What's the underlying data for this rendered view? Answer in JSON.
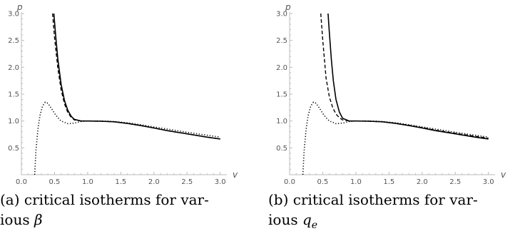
{
  "figures": [
    {
      "caption_label": "(a)",
      "caption_text": "critical isotherms for var-",
      "caption_text2": "ious",
      "caption_symbol": "β",
      "caption_subscript": ""
    },
    {
      "caption_label": "(b)",
      "caption_text": "critical isotherms for var-",
      "caption_text2": "ious",
      "caption_symbol": "q",
      "caption_subscript": "e"
    }
  ],
  "chart_data": [
    {
      "type": "line",
      "title": "",
      "xlabel": "v",
      "ylabel": "p",
      "xlim": [
        0.0,
        3.1
      ],
      "ylim": [
        0.0,
        3.0
      ],
      "x_ticks": [
        "0.0",
        "0.5",
        "1.0",
        "1.5",
        "2.0",
        "2.5",
        "3.0"
      ],
      "y_ticks": [
        "0.5",
        "1.0",
        "1.5",
        "2.0",
        "2.5",
        "3.0"
      ],
      "series": [
        {
          "style": "solid",
          "x": [
            0.49,
            0.52,
            0.55,
            0.6,
            0.65,
            0.7,
            0.75,
            0.8,
            0.9,
            1.0,
            1.2,
            1.4,
            1.6,
            1.8,
            2.0,
            2.2,
            2.5,
            2.8,
            3.0
          ],
          "y": [
            3.0,
            2.55,
            2.15,
            1.68,
            1.38,
            1.2,
            1.09,
            1.03,
            1.0,
            1.0,
            0.995,
            0.985,
            0.955,
            0.915,
            0.87,
            0.82,
            0.76,
            0.7,
            0.665
          ]
        },
        {
          "style": "dashed",
          "x": [
            0.47,
            0.5,
            0.55,
            0.6,
            0.65,
            0.7,
            0.75,
            0.8,
            0.9,
            1.0,
            1.2,
            1.4,
            1.6,
            1.8,
            2.0,
            2.2,
            2.5,
            2.8,
            3.0
          ],
          "y": [
            3.0,
            2.55,
            1.98,
            1.58,
            1.32,
            1.16,
            1.07,
            1.02,
            1.0,
            1.0,
            0.995,
            0.985,
            0.955,
            0.915,
            0.87,
            0.82,
            0.76,
            0.7,
            0.665
          ]
        },
        {
          "style": "dotted",
          "x": [
            0.2,
            0.22,
            0.25,
            0.28,
            0.32,
            0.36,
            0.4,
            0.45,
            0.5,
            0.55,
            0.6,
            0.7,
            0.8,
            0.9,
            1.0,
            1.2,
            1.4,
            1.6,
            1.8,
            2.0,
            2.2,
            2.5,
            2.8,
            3.0
          ],
          "y": [
            0.0,
            0.45,
            0.85,
            1.1,
            1.28,
            1.35,
            1.33,
            1.24,
            1.14,
            1.06,
            1.0,
            0.95,
            0.96,
            0.99,
            1.0,
            1.0,
            0.99,
            0.965,
            0.93,
            0.89,
            0.85,
            0.79,
            0.735,
            0.7
          ]
        }
      ]
    },
    {
      "type": "line",
      "title": "",
      "xlabel": "v",
      "ylabel": "p",
      "xlim": [
        0.0,
        3.1
      ],
      "ylim": [
        0.0,
        3.0
      ],
      "x_ticks": [
        "0.0",
        "0.5",
        "1.0",
        "1.5",
        "2.0",
        "2.5",
        "3.0"
      ],
      "y_ticks": [
        "0.5",
        "1.0",
        "1.5",
        "2.0",
        "2.5",
        "3.0"
      ],
      "series": [
        {
          "style": "solid",
          "x": [
            0.58,
            0.6,
            0.63,
            0.66,
            0.7,
            0.75,
            0.8,
            0.9,
            1.0,
            1.2,
            1.4,
            1.6,
            1.8,
            2.0,
            2.2,
            2.5,
            2.8,
            3.0
          ],
          "y": [
            3.0,
            2.65,
            2.15,
            1.75,
            1.4,
            1.17,
            1.05,
            1.0,
            1.0,
            0.995,
            0.985,
            0.955,
            0.915,
            0.87,
            0.82,
            0.76,
            0.7,
            0.665
          ]
        },
        {
          "style": "dashed",
          "x": [
            0.47,
            0.5,
            0.55,
            0.6,
            0.65,
            0.7,
            0.75,
            0.8,
            0.9,
            1.0,
            1.2,
            1.4,
            1.6,
            1.8,
            2.0,
            2.2,
            2.5,
            2.8,
            3.0
          ],
          "y": [
            3.0,
            2.5,
            1.8,
            1.45,
            1.25,
            1.13,
            1.06,
            1.02,
            1.0,
            1.0,
            0.995,
            0.985,
            0.958,
            0.92,
            0.877,
            0.83,
            0.77,
            0.715,
            0.68
          ]
        },
        {
          "style": "dotted",
          "x": [
            0.2,
            0.22,
            0.25,
            0.28,
            0.32,
            0.36,
            0.4,
            0.45,
            0.5,
            0.55,
            0.6,
            0.7,
            0.8,
            0.9,
            1.0,
            1.2,
            1.4,
            1.6,
            1.8,
            2.0,
            2.2,
            2.5,
            2.8,
            3.0
          ],
          "y": [
            0.0,
            0.45,
            0.85,
            1.1,
            1.28,
            1.35,
            1.33,
            1.24,
            1.14,
            1.06,
            1.0,
            0.95,
            0.96,
            0.99,
            1.0,
            1.0,
            0.99,
            0.965,
            0.93,
            0.89,
            0.85,
            0.79,
            0.735,
            0.7
          ]
        }
      ]
    }
  ]
}
